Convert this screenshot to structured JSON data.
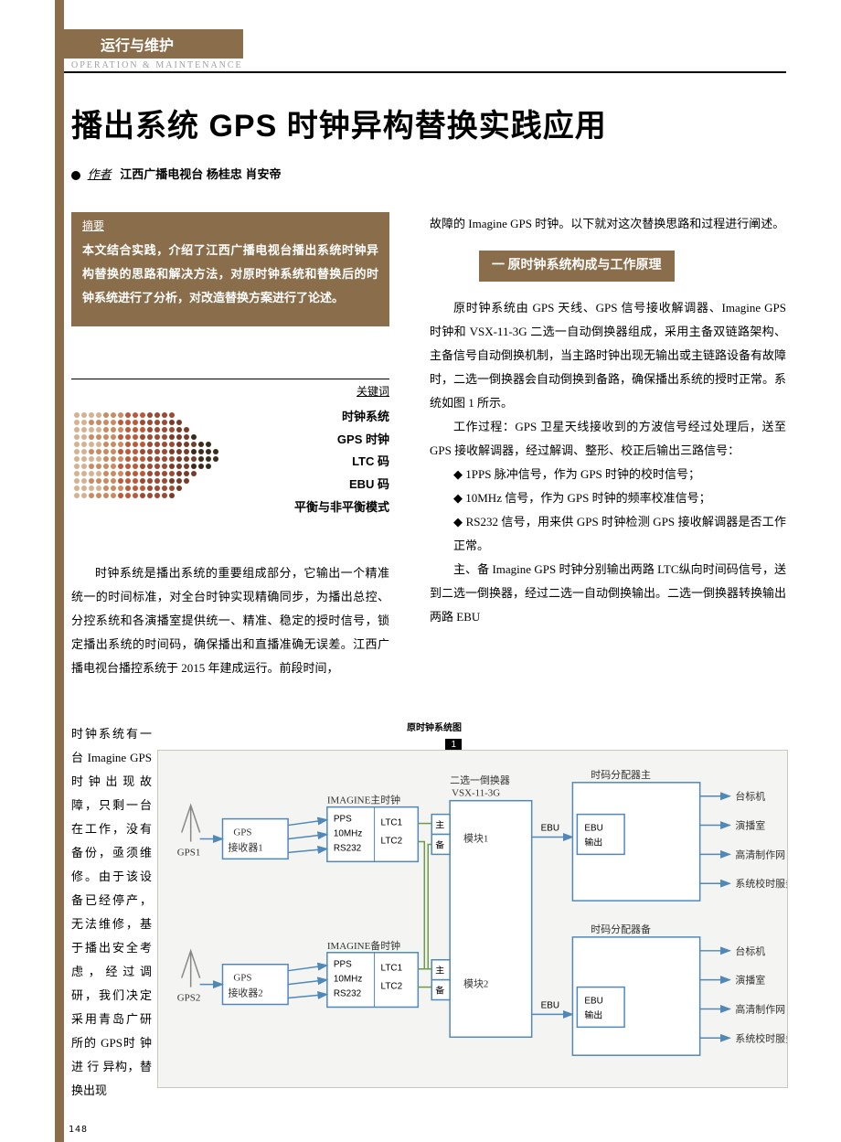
{
  "page_number": "148",
  "section": {
    "cn": "运行与维护",
    "en": "OPERATION & MAINTENANCE"
  },
  "title": "播出系统 GPS 时钟异构替换实践应用",
  "author": {
    "label": "作者",
    "names": "江西广播电视台  杨桂忠  肖安帝"
  },
  "abstract": {
    "label": "摘要",
    "text": "本文结合实践，介绍了江西广播电视台播出系统时钟异构替换的思路和解决方法，对原时钟系统和替换后的时钟系统进行了分析，对改造替换方案进行了论述。"
  },
  "keywords": {
    "label": "关键词",
    "items": [
      "时钟系统",
      "GPS 时钟",
      "LTC 码",
      "EBU 码",
      "平衡与非平衡模式"
    ]
  },
  "col_left": {
    "p1": "时钟系统是播出系统的重要组成部分，它输出一个精准统一的时间标准，对全台时钟实现精确同步，为播出总控、分控系统和各演播室提供统一、精准、稳定的授时信号，锁定播出系统的时间码，确保播出和直播准确无误差。江西广播电视台播控系统于 2015 年建成运行。前段时间，",
    "p2": "时钟系统有一台 Imagine GPS时钟出现故障，只剩一台在工作，没有备份，亟须维修。由于该设备已经停产，无法维修，基于播出安全考虑，经过调研，我们决定采用青岛广研所的 GPS时 钟 进 行 异构，替换出现"
  },
  "col_right": {
    "p0": "故障的 Imagine GPS 时钟。以下就对这次替换思路和过程进行阐述。",
    "sec1_title": "一 原时钟系统构成与工作原理",
    "p1": "原时钟系统由 GPS 天线、GPS 信号接收解调器、Imagine GPS 时钟和 VSX-11-3G 二选一自动倒换器组成，采用主备双链路架构、主备信号自动倒换机制，当主路时钟出现无输出或主链路设备有故障时，二选一倒换器会自动倒换到备路，确保播出系统的授时正常。系统如图 1 所示。",
    "p2": "工作过程：GPS 卫星天线接收到的方波信号经过处理后，送至 GPS 接收解调器，经过解调、整形、校正后输出三路信号：",
    "b1": "◆ 1PPS 脉冲信号，作为 GPS 时钟的校时信号；",
    "b2": "◆ 10MHz 信号，作为 GPS 时钟的频率校准信号；",
    "b3": "◆ RS232 信号，用来供 GPS 时钟检测 GPS 接收解调器是否工作正常。",
    "p3": "主、备 Imagine GPS 时钟分别输出两路 LTC纵向时间码信号，送到二选一倒换器，经过二选一自动倒换输出。二选一倒换器转换输出两路 EBU"
  },
  "figure": {
    "caption": "原时钟系统图",
    "num": "1",
    "gps1": "GPS1",
    "gps2": "GPS2",
    "recv1": "GPS\n接收器1",
    "recv2": "GPS\n接收器2",
    "imagine_main": "IMAGINE主时钟",
    "imagine_bak": "IMAGINE备时钟",
    "sig": {
      "pps": "PPS",
      "mhz": "10MHz",
      "rs": "RS232",
      "ltc1": "LTC1",
      "ltc2": "LTC2"
    },
    "switcher": {
      "title": "二选一倒换器",
      "model": "VSX-11-3G",
      "mod1": "模块1",
      "mod2": "模块2",
      "main": "主",
      "bak": "备"
    },
    "ebu": "EBU",
    "ebu_out": "EBU\n输出",
    "dist_main": "时码分配器主",
    "dist_bak": "时码分配器备",
    "outputs": [
      "台标机",
      "演播室",
      "高清制作网",
      "系统校时服务器"
    ]
  },
  "dotarrow": {
    "cols": 20,
    "rows": 12,
    "r": 3,
    "gap": 8,
    "palette": [
      "#3a2a1a",
      "#7a3a28",
      "#a04830",
      "#c05838",
      "#cc8a60",
      "#d8b090"
    ]
  }
}
